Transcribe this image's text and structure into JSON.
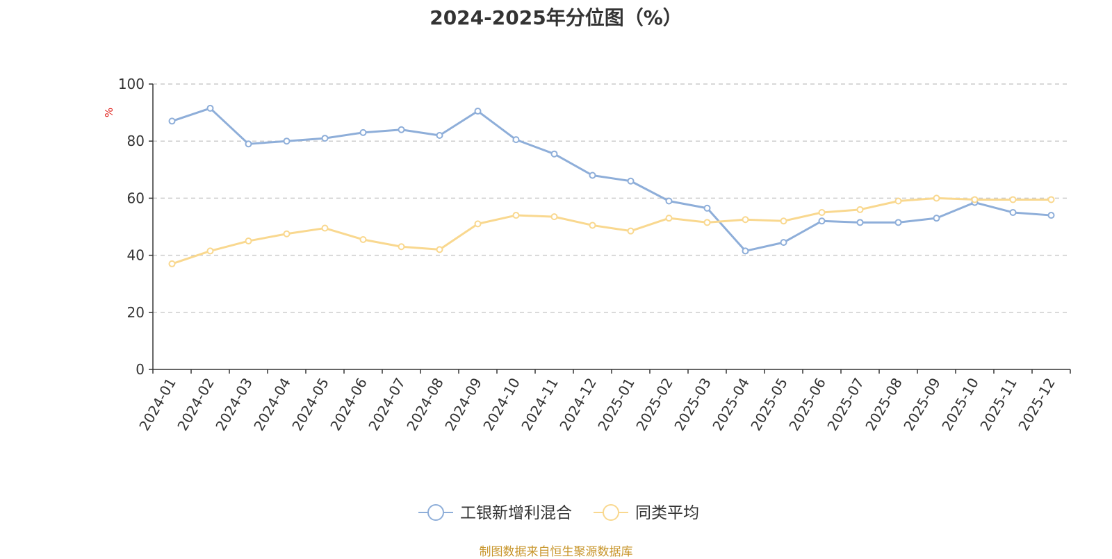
{
  "chart_data": {
    "type": "line",
    "title": "2024-2025年分位图（%）",
    "ylabel": "%",
    "ylim": [
      0,
      100
    ],
    "yticks": [
      0,
      20,
      40,
      60,
      80,
      100
    ],
    "grid": true,
    "legend_position": "bottom-center",
    "categories": [
      "2024-01",
      "2024-02",
      "2024-03",
      "2024-04",
      "2024-05",
      "2024-06",
      "2024-07",
      "2024-08",
      "2024-09",
      "2024-10",
      "2024-11",
      "2024-12",
      "2025-01",
      "2025-02",
      "2025-03",
      "2025-04",
      "2025-05",
      "2025-06",
      "2025-07",
      "2025-08",
      "2025-09",
      "2025-10",
      "2025-11",
      "2025-12"
    ],
    "series": [
      {
        "name": "工银新增利混合",
        "color": "#8eaed9",
        "values": [
          87,
          91.5,
          79,
          80,
          81,
          83,
          84,
          82,
          90.5,
          80.5,
          75.5,
          68,
          66,
          59,
          56.5,
          41.5,
          44.5,
          52,
          51.5,
          51.5,
          53,
          58.5,
          55,
          54
        ]
      },
      {
        "name": "同类平均",
        "color": "#f9d88f",
        "values": [
          37,
          41.5,
          45,
          47.5,
          49.5,
          45.5,
          43,
          42,
          51,
          54,
          53.5,
          50.5,
          48.5,
          53,
          51.5,
          52.5,
          52,
          55,
          56,
          59,
          60,
          59.5,
          59.5,
          59.5
        ]
      }
    ]
  },
  "footer": {
    "source": "制图数据来自恒生聚源数据库"
  }
}
